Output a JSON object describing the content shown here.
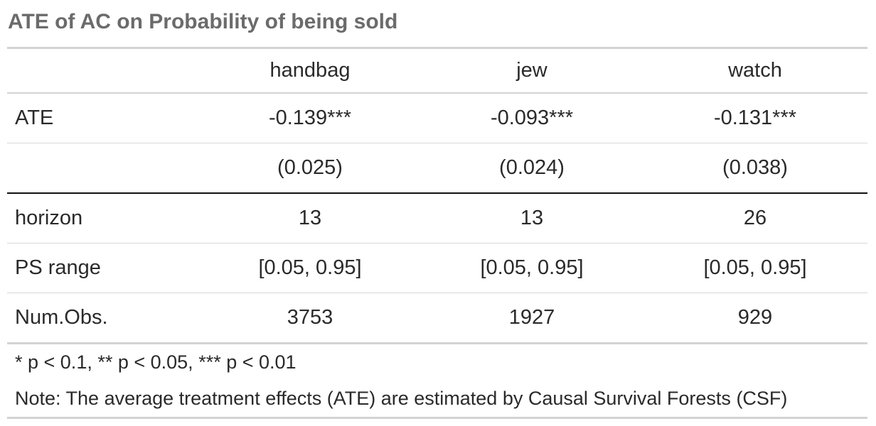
{
  "title": "ATE of AC on Probability of being sold",
  "columns": [
    "",
    "handbag",
    "jew",
    "watch"
  ],
  "rows": [
    {
      "stub": "ATE",
      "values": [
        "-0.139***",
        "-0.093***",
        "-0.131***"
      ]
    },
    {
      "stub": "",
      "values": [
        "(0.025)",
        "(0.024)",
        "(0.038)"
      ]
    },
    {
      "stub": "horizon",
      "values": [
        "13",
        "13",
        "26"
      ]
    },
    {
      "stub": "PS range",
      "values": [
        "[0.05, 0.95]",
        "[0.05, 0.95]",
        "[0.05, 0.95]"
      ]
    },
    {
      "stub": "Num.Obs.",
      "values": [
        "3753",
        "1927",
        "929"
      ]
    }
  ],
  "footnotes": {
    "significance": "* p < 0.1, ** p < 0.05, *** p < 0.01",
    "note": "Note: The average treatment effects (ATE) are estimated by Causal Survival Forests (CSF)"
  }
}
